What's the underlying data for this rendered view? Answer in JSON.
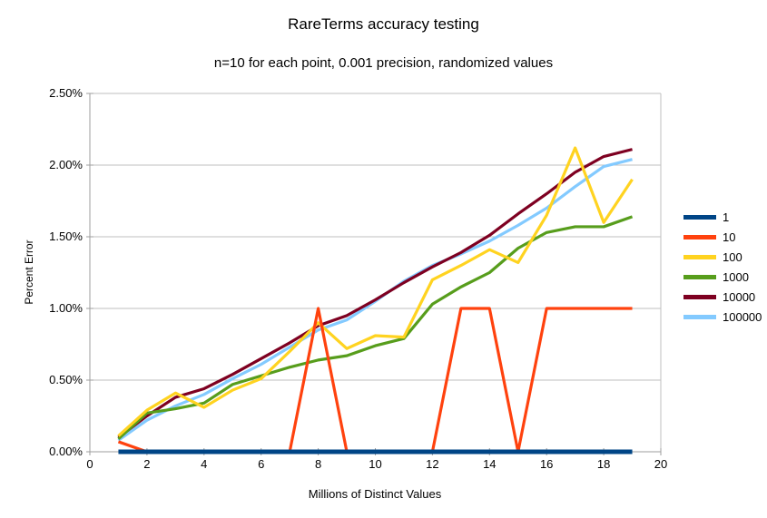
{
  "chart_data": {
    "type": "line",
    "title": "RareTerms accuracy testing",
    "subtitle": "n=10 for each point, 0.001 precision, randomized values",
    "xlabel": "Millions of Distinct Values",
    "ylabel": "Percent Error",
    "xlim": [
      0,
      20
    ],
    "ylim": [
      0,
      2.5
    ],
    "y_unit": "percent",
    "grid": "horizontal",
    "legend_position": "right",
    "x_ticks": [
      0,
      2,
      4,
      6,
      8,
      10,
      12,
      14,
      16,
      18,
      20
    ],
    "y_tick_values": [
      0,
      0.5,
      1.0,
      1.5,
      2.0,
      2.5
    ],
    "y_tick_labels": [
      "0.00%",
      "0.50%",
      "1.00%",
      "1.50%",
      "2.00%",
      "2.50%"
    ],
    "x": [
      1,
      2,
      3,
      4,
      5,
      6,
      7,
      8,
      9,
      10,
      11,
      12,
      13,
      14,
      15,
      16,
      17,
      18,
      19
    ],
    "series": [
      {
        "name": "1",
        "color": "#004586",
        "line_width": 5,
        "values": [
          0,
          0,
          0,
          0,
          0,
          0,
          0,
          0,
          0,
          0,
          0,
          0,
          0,
          0,
          0,
          0,
          0,
          0,
          0
        ]
      },
      {
        "name": "10",
        "color": "#FF420E",
        "line_width": 3.2,
        "values": [
          0.07,
          0,
          0,
          0,
          0,
          0,
          0,
          1.0,
          0,
          0,
          0,
          0,
          1.0,
          1.0,
          0,
          1.0,
          1.0,
          1.0,
          1.0
        ]
      },
      {
        "name": "100",
        "color": "#FFD320",
        "line_width": 3.2,
        "values": [
          0.11,
          0.29,
          0.41,
          0.31,
          0.43,
          0.51,
          0.7,
          0.9,
          0.72,
          0.81,
          0.8,
          1.2,
          1.3,
          1.41,
          1.32,
          1.65,
          2.12,
          1.6,
          1.9
        ]
      },
      {
        "name": "1000",
        "color": "#579D1C",
        "line_width": 3.2,
        "values": [
          0.09,
          0.27,
          0.3,
          0.34,
          0.47,
          0.53,
          0.59,
          0.64,
          0.67,
          0.74,
          0.79,
          1.03,
          1.15,
          1.25,
          1.42,
          1.53,
          1.57,
          1.57,
          1.64
        ]
      },
      {
        "name": "10000",
        "color": "#7E0021",
        "line_width": 3.2,
        "values": [
          0.1,
          0.25,
          0.38,
          0.44,
          0.54,
          0.65,
          0.76,
          0.88,
          0.95,
          1.06,
          1.18,
          1.29,
          1.39,
          1.51,
          1.66,
          1.8,
          1.95,
          2.06,
          2.11
        ]
      },
      {
        "name": "100000",
        "color": "#83CAFF",
        "line_width": 3.2,
        "values": [
          0.08,
          0.22,
          0.32,
          0.4,
          0.51,
          0.61,
          0.73,
          0.85,
          0.92,
          1.05,
          1.19,
          1.3,
          1.38,
          1.47,
          1.58,
          1.7,
          1.85,
          1.99,
          2.04
        ]
      }
    ],
    "style": {
      "grid_color": "#bfbfbf",
      "axis_color": "#9e9e9e",
      "text_color": "#000000",
      "background": "#ffffff"
    }
  }
}
